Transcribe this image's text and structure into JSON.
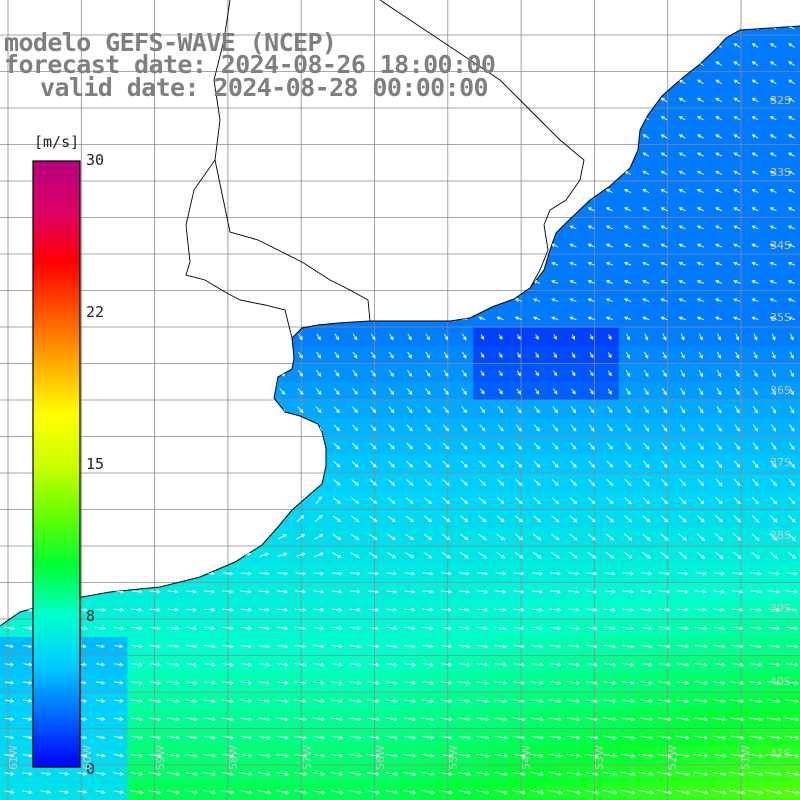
{
  "title": {
    "line1": "modelo GEFS-WAVE (NCEP)",
    "line2": "forecast date: 2024-08-26 18:00:00",
    "line3": "valid date: 2024-08-28 00:00:00"
  },
  "colorbar": {
    "unit": "[m/s]",
    "ticks": [
      "30",
      "22",
      "15",
      "8",
      "0"
    ],
    "tick_values": [
      30,
      22.5,
      15,
      7.5,
      0
    ],
    "min": 0,
    "max": 30,
    "colors": [
      "#0000ff",
      "#0066ff",
      "#00ccff",
      "#00ffcc",
      "#00ff33",
      "#66ff00",
      "#ccff00",
      "#ffff00",
      "#ffaa00",
      "#ff5500",
      "#ff0000",
      "#dd0066",
      "#b5007f"
    ]
  },
  "map": {
    "lat_labels": [
      "32S",
      "33S",
      "34S",
      "35S",
      "36S",
      "37S",
      "38S",
      "39S",
      "40S",
      "41S"
    ],
    "lon_labels": [
      "61W",
      "60W",
      "59W",
      "58W",
      "57W",
      "56W",
      "55W",
      "54W",
      "53W",
      "52W",
      "51W"
    ],
    "land_color": "#ffffff",
    "grid_color": "#8a8a8a",
    "arrow_color": "#ffffff",
    "coast_color": "#000000"
  }
}
